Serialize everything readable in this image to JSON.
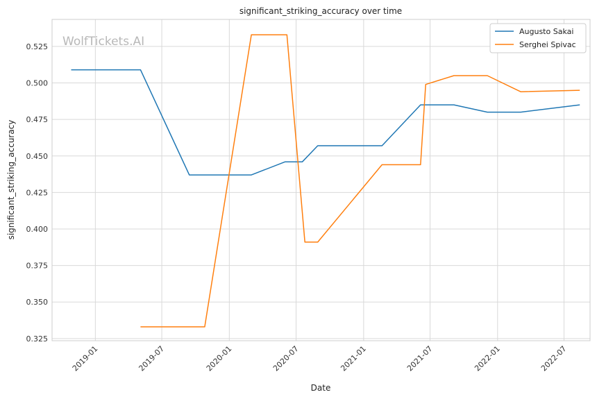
{
  "chart_data": {
    "type": "line",
    "title": "significant_striking_accuracy over time",
    "xlabel": "Date",
    "ylabel": "significant_striking_accuracy",
    "watermark": "WolfTickets.AI",
    "xlim": [
      "2018-09-05",
      "2022-09-10"
    ],
    "ylim": [
      0.3235,
      0.5435
    ],
    "x_ticks": [
      "2019-01",
      "2019-07",
      "2020-01",
      "2020-07",
      "2021-01",
      "2021-07",
      "2022-01",
      "2022-07"
    ],
    "y_ticks": [
      "0.325",
      "0.350",
      "0.375",
      "0.400",
      "0.425",
      "0.450",
      "0.475",
      "0.500",
      "0.525"
    ],
    "grid": true,
    "legend_position": "top-right",
    "series": [
      {
        "name": "Augusto Sakai",
        "color": "#1f77b4",
        "points": [
          {
            "x": "2018-10-27",
            "y": 0.509
          },
          {
            "x": "2019-05-04",
            "y": 0.509
          },
          {
            "x": "2019-09-14",
            "y": 0.437
          },
          {
            "x": "2020-03-01",
            "y": 0.437
          },
          {
            "x": "2020-06-01",
            "y": 0.446
          },
          {
            "x": "2020-07-18",
            "y": 0.446
          },
          {
            "x": "2020-08-29",
            "y": 0.457
          },
          {
            "x": "2021-02-20",
            "y": 0.457
          },
          {
            "x": "2021-06-05",
            "y": 0.485
          },
          {
            "x": "2021-09-04",
            "y": 0.485
          },
          {
            "x": "2021-12-04",
            "y": 0.48
          },
          {
            "x": "2022-03-05",
            "y": 0.48
          },
          {
            "x": "2022-08-13",
            "y": 0.485
          }
        ]
      },
      {
        "name": "Serghei Spivac",
        "color": "#ff7f0e",
        "points": [
          {
            "x": "2019-05-04",
            "y": 0.333
          },
          {
            "x": "2019-10-26",
            "y": 0.333
          },
          {
            "x": "2020-03-01",
            "y": 0.533
          },
          {
            "x": "2020-06-06",
            "y": 0.533
          },
          {
            "x": "2020-07-25",
            "y": 0.391
          },
          {
            "x": "2020-08-29",
            "y": 0.391
          },
          {
            "x": "2021-02-20",
            "y": 0.444
          },
          {
            "x": "2021-06-05",
            "y": 0.444
          },
          {
            "x": "2021-06-19",
            "y": 0.499
          },
          {
            "x": "2021-09-04",
            "y": 0.505
          },
          {
            "x": "2021-12-04",
            "y": 0.505
          },
          {
            "x": "2022-03-05",
            "y": 0.494
          },
          {
            "x": "2022-08-13",
            "y": 0.495
          }
        ]
      }
    ]
  }
}
